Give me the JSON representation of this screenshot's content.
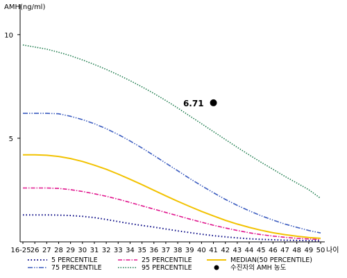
{
  "chart_data": {
    "type": "line",
    "ylabel": "AMH(ng/ml)",
    "xlabel": "나이",
    "ylim": [
      0,
      11
    ],
    "yticks": [
      5,
      10
    ],
    "grid": false,
    "legend_position": "bottom",
    "categories": [
      "16-25",
      "26",
      "27",
      "28",
      "29",
      "30",
      "31",
      "32",
      "33",
      "34",
      "35",
      "36",
      "37",
      "38",
      "39",
      "40",
      "41",
      "42",
      "43",
      "44",
      "45",
      "46",
      "47",
      "48",
      "49",
      "50"
    ],
    "series": [
      {
        "name": "5 PERCENTILE",
        "color": "#000080",
        "dash": "1.5,3",
        "width": 2,
        "values": [
          1.3,
          1.3,
          1.3,
          1.29,
          1.27,
          1.23,
          1.17,
          1.08,
          0.98,
          0.88,
          0.79,
          0.71,
          0.62,
          0.53,
          0.45,
          0.37,
          0.3,
          0.24,
          0.19,
          0.15,
          0.12,
          0.1,
          0.08,
          0.07,
          0.06,
          0.05
        ]
      },
      {
        "name": "25 PERCENTILE",
        "color": "#e0138c",
        "dash": "6,2,1.5,2",
        "width": 1.6,
        "values": [
          2.6,
          2.6,
          2.6,
          2.58,
          2.52,
          2.43,
          2.32,
          2.2,
          2.06,
          1.9,
          1.74,
          1.58,
          1.42,
          1.26,
          1.1,
          0.95,
          0.8,
          0.67,
          0.55,
          0.44,
          0.35,
          0.28,
          0.22,
          0.17,
          0.14,
          0.11
        ]
      },
      {
        "name": "MEDIAN(50 PERCENTILE)",
        "color": "#f2c200",
        "dash": "",
        "width": 2,
        "values": [
          4.2,
          4.2,
          4.18,
          4.12,
          4.02,
          3.88,
          3.7,
          3.5,
          3.27,
          3.02,
          2.76,
          2.49,
          2.22,
          1.96,
          1.71,
          1.47,
          1.25,
          1.04,
          0.86,
          0.7,
          0.56,
          0.44,
          0.35,
          0.27,
          0.21,
          0.17
        ]
      },
      {
        "name": "75 PERCENTILE",
        "color": "#3a5bbf",
        "dash": "7,2,1.5,2,1.5,2",
        "width": 1.6,
        "values": [
          6.2,
          6.2,
          6.2,
          6.18,
          6.06,
          5.9,
          5.7,
          5.46,
          5.18,
          4.87,
          4.53,
          4.17,
          3.8,
          3.43,
          3.06,
          2.71,
          2.37,
          2.05,
          1.76,
          1.5,
          1.26,
          1.05,
          0.86,
          0.7,
          0.55,
          0.43
        ]
      },
      {
        "name": "95 PERCENTILE",
        "color": "#1a7a4a",
        "dash": "1.5,2",
        "width": 1.6,
        "values": [
          9.5,
          9.4,
          9.3,
          9.15,
          8.98,
          8.78,
          8.56,
          8.32,
          8.06,
          7.78,
          7.48,
          7.16,
          6.82,
          6.46,
          6.08,
          5.7,
          5.32,
          4.94,
          4.56,
          4.2,
          3.84,
          3.5,
          3.16,
          2.84,
          2.52,
          2.1
        ]
      }
    ],
    "points": [
      {
        "name": "수진자의 AMH 농도",
        "x": "41",
        "y": 6.71,
        "label": "6.71",
        "color": "#000000"
      }
    ]
  }
}
